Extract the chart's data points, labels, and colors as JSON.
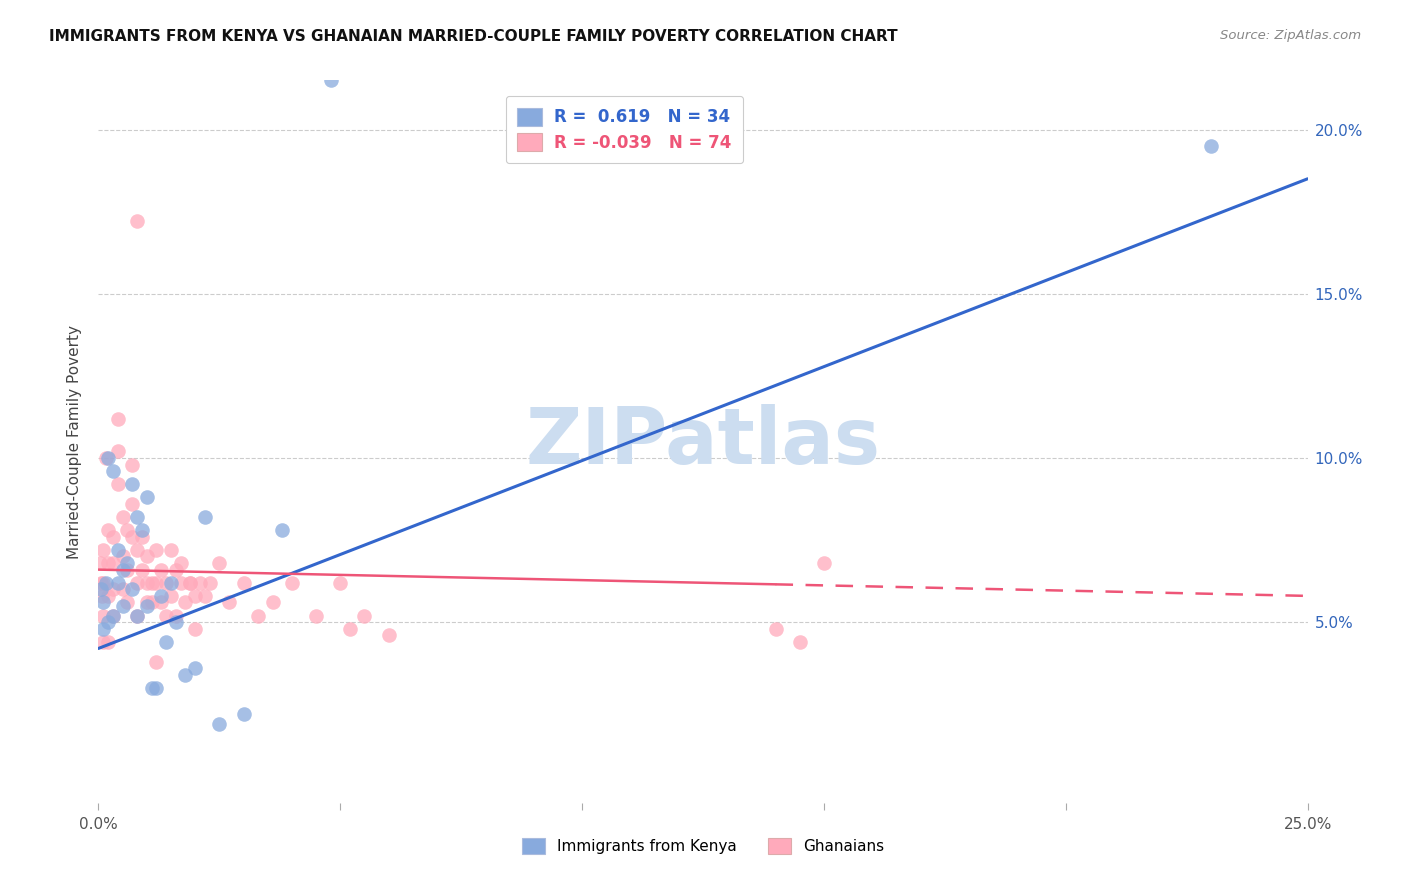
{
  "title": "IMMIGRANTS FROM KENYA VS GHANAIAN MARRIED-COUPLE FAMILY POVERTY CORRELATION CHART",
  "source": "Source: ZipAtlas.com",
  "ylabel": "Married-Couple Family Poverty",
  "xlim": [
    0.0,
    0.25
  ],
  "ylim": [
    -0.005,
    0.215
  ],
  "legend1_r": "0.619",
  "legend1_n": "34",
  "legend2_r": "-0.039",
  "legend2_n": "74",
  "legend_label1": "Immigrants from Kenya",
  "legend_label2": "Ghanaians",
  "watermark": "ZIPatlas",
  "watermark_color": "#ccddf0",
  "blue_scatter_color": "#88aadd",
  "pink_scatter_color": "#ffaabb",
  "blue_line_color": "#3366cc",
  "pink_line_color": "#ee5577",
  "kenya_x": [
    0.0005,
    0.001,
    0.001,
    0.0015,
    0.002,
    0.002,
    0.003,
    0.003,
    0.004,
    0.004,
    0.005,
    0.005,
    0.006,
    0.007,
    0.007,
    0.008,
    0.008,
    0.009,
    0.01,
    0.01,
    0.011,
    0.012,
    0.013,
    0.014,
    0.015,
    0.016,
    0.018,
    0.02,
    0.022,
    0.025,
    0.03,
    0.038,
    0.048,
    0.23
  ],
  "kenya_y": [
    0.06,
    0.056,
    0.048,
    0.062,
    0.05,
    0.1,
    0.096,
    0.052,
    0.072,
    0.062,
    0.066,
    0.055,
    0.068,
    0.06,
    0.092,
    0.082,
    0.052,
    0.078,
    0.088,
    0.055,
    0.03,
    0.03,
    0.058,
    0.044,
    0.062,
    0.05,
    0.034,
    0.036,
    0.082,
    0.019,
    0.022,
    0.078,
    0.215,
    0.195
  ],
  "ghana_x": [
    0.0003,
    0.0005,
    0.0007,
    0.001,
    0.001,
    0.001,
    0.001,
    0.0015,
    0.002,
    0.002,
    0.002,
    0.002,
    0.003,
    0.003,
    0.003,
    0.003,
    0.004,
    0.004,
    0.004,
    0.005,
    0.005,
    0.005,
    0.006,
    0.006,
    0.006,
    0.007,
    0.007,
    0.007,
    0.008,
    0.008,
    0.008,
    0.009,
    0.009,
    0.01,
    0.01,
    0.01,
    0.011,
    0.011,
    0.012,
    0.012,
    0.013,
    0.013,
    0.014,
    0.014,
    0.015,
    0.015,
    0.016,
    0.016,
    0.017,
    0.018,
    0.019,
    0.02,
    0.02,
    0.021,
    0.022,
    0.023,
    0.025,
    0.027,
    0.03,
    0.033,
    0.036,
    0.04,
    0.045,
    0.05,
    0.055,
    0.06,
    0.14,
    0.15,
    0.145,
    0.052,
    0.017,
    0.012,
    0.008,
    0.019
  ],
  "ghana_y": [
    0.068,
    0.062,
    0.058,
    0.072,
    0.062,
    0.052,
    0.044,
    0.1,
    0.078,
    0.068,
    0.058,
    0.044,
    0.076,
    0.068,
    0.06,
    0.052,
    0.112,
    0.102,
    0.092,
    0.082,
    0.07,
    0.06,
    0.078,
    0.066,
    0.056,
    0.098,
    0.086,
    0.076,
    0.072,
    0.062,
    0.052,
    0.076,
    0.066,
    0.07,
    0.062,
    0.056,
    0.062,
    0.056,
    0.072,
    0.062,
    0.066,
    0.056,
    0.062,
    0.052,
    0.072,
    0.058,
    0.066,
    0.052,
    0.062,
    0.056,
    0.062,
    0.058,
    0.048,
    0.062,
    0.058,
    0.062,
    0.068,
    0.056,
    0.062,
    0.052,
    0.056,
    0.062,
    0.052,
    0.062,
    0.052,
    0.046,
    0.048,
    0.068,
    0.044,
    0.048,
    0.068,
    0.038,
    0.172,
    0.062
  ]
}
